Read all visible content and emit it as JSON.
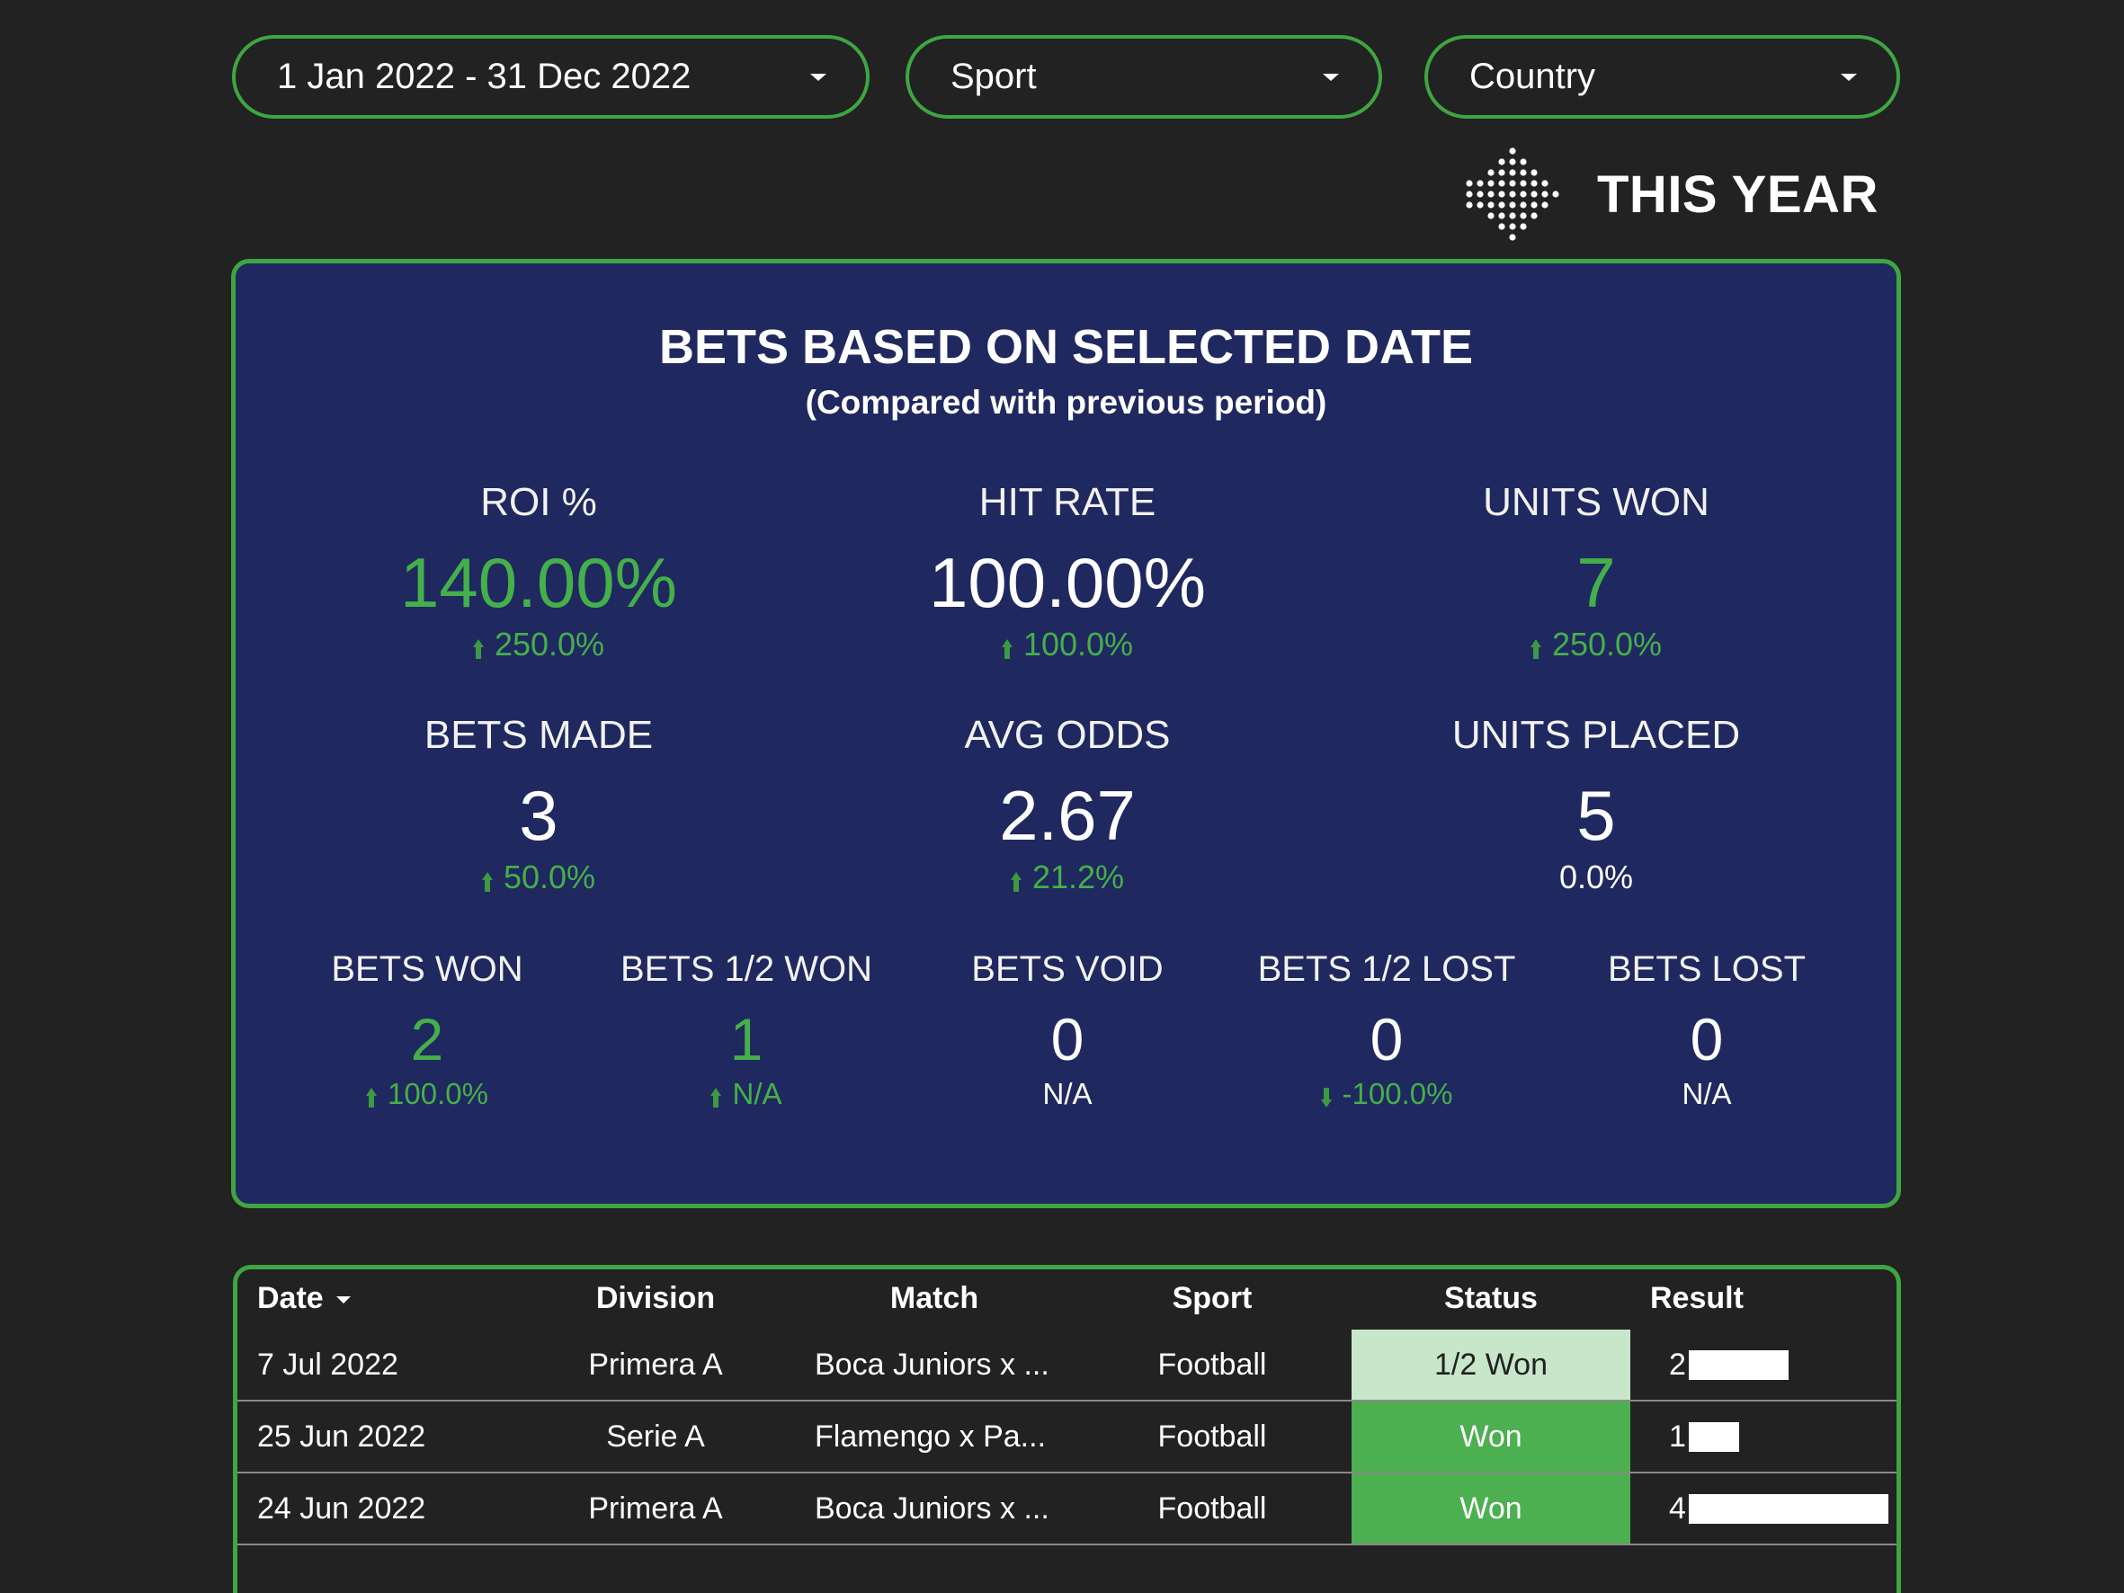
{
  "filters": {
    "date_range": "1 Jan 2022 - 31 Dec 2022",
    "sport": "Sport",
    "country": "Country"
  },
  "period": {
    "title": "THIS YEAR",
    "icon": "dot-arrow-icon"
  },
  "summary": {
    "title": "BETS BASED ON SELECTED DATE",
    "subtitle": "(Compared with previous period)",
    "metrics": [
      {
        "label": "ROI %",
        "value": "140.00%",
        "delta": "250.0%",
        "trend": "up",
        "value_color": "green"
      },
      {
        "label": "HIT RATE",
        "value": "100.00%",
        "delta": "100.0%",
        "trend": "up",
        "value_color": "white"
      },
      {
        "label": "UNITS WON",
        "value": "7",
        "delta": "250.0%",
        "trend": "up",
        "value_color": "green"
      },
      {
        "label": "BETS MADE",
        "value": "3",
        "delta": "50.0%",
        "trend": "up",
        "value_color": "white"
      },
      {
        "label": "AVG ODDS",
        "value": "2.67",
        "delta": "21.2%",
        "trend": "up",
        "value_color": "white"
      },
      {
        "label": "UNITS PLACED",
        "value": "5",
        "delta": "0.0%",
        "trend": "none",
        "value_color": "white"
      }
    ],
    "outcomes": [
      {
        "label": "BETS WON",
        "value": "2",
        "delta": "100.0%",
        "trend": "up",
        "value_color": "green"
      },
      {
        "label": "BETS 1/2 WON",
        "value": "1",
        "delta": "N/A",
        "trend": "up",
        "value_color": "green"
      },
      {
        "label": "BETS VOID",
        "value": "0",
        "delta": "N/A",
        "trend": "none",
        "value_color": "white"
      },
      {
        "label": "BETS 1/2 LOST",
        "value": "0",
        "delta": "-100.0%",
        "trend": "down",
        "value_color": "white"
      },
      {
        "label": "BETS LOST",
        "value": "0",
        "delta": "N/A",
        "trend": "none",
        "value_color": "white"
      }
    ]
  },
  "table": {
    "headers": {
      "date": "Date",
      "division": "Division",
      "match": "Match",
      "sport": "Sport",
      "status": "Status",
      "result": "Result"
    },
    "rows": [
      {
        "date": "7 Jul 2022",
        "division": "Primera A",
        "match": "Boca Juniors x ...",
        "sport": "Football",
        "status": "1/2 Won",
        "result": "2",
        "result_value": 2
      },
      {
        "date": "25 Jun 2022",
        "division": "Serie A",
        "match": "Flamengo x Pa...",
        "sport": "Football",
        "status": "Won",
        "result": "1",
        "result_value": 1
      },
      {
        "date": "24 Jun 2022",
        "division": "Primera A",
        "match": "Boca Juniors x ...",
        "sport": "Football",
        "status": "Won",
        "result": "4",
        "result_value": 4
      }
    ],
    "result_max": 4
  },
  "colors": {
    "accent": "#3ea641",
    "panel": "#202860",
    "positive": "#44b049",
    "won_bg": "#4caf50",
    "half_won_bg": "#c8e6c9",
    "half_won_text": "#222222",
    "background": "#222222"
  }
}
